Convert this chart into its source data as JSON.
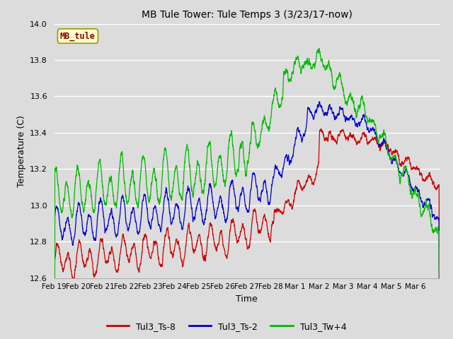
{
  "title": "MB Tule Tower: Tule Temps 3 (3/23/17-now)",
  "xlabel": "Time",
  "ylabel": "Temperature (C)",
  "ylim": [
    12.6,
    14.0
  ],
  "background_color": "#dcdcdc",
  "plot_bg_color": "#dcdcdc",
  "grid_color": "white",
  "legend_box_label": "MB_tule",
  "legend_box_facecolor": "#ffffcc",
  "legend_box_edgecolor": "#999900",
  "series_labels": [
    "Tul3_Ts-8",
    "Tul3_Ts-2",
    "Tul3_Tw+4"
  ],
  "series_colors": [
    "#cc0000",
    "#0000cc",
    "#00bb00"
  ],
  "tick_labels": [
    "Feb 19",
    "Feb 20",
    "Feb 21",
    "Feb 22",
    "Feb 23",
    "Feb 24",
    "Feb 25",
    "Feb 26",
    "Feb 27",
    "Feb 28",
    "Mar 1",
    "Mar 2",
    "Mar 3",
    "Mar 4",
    "Mar 5",
    "Mar 6"
  ],
  "num_days": 16
}
